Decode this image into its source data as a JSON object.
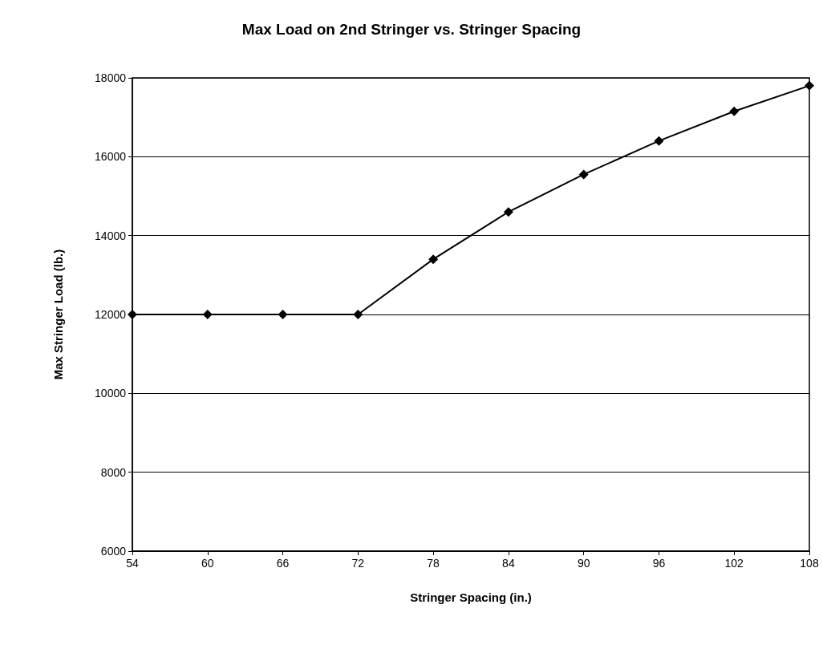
{
  "chart_data": {
    "type": "line",
    "title": "Max Load on 2nd Stringer vs. Stringer Spacing",
    "xlabel": "Stringer Spacing (in.)",
    "ylabel": "Max Stringer Load (lb.)",
    "x": [
      54,
      60,
      66,
      72,
      78,
      84,
      90,
      96,
      102,
      108
    ],
    "series": [
      {
        "color": "#000000",
        "values": [
          12000,
          12000,
          12000,
          12000,
          13400,
          14600,
          15550,
          16400,
          17150,
          17800
        ]
      }
    ],
    "xlim": [
      54,
      108
    ],
    "xticks": [
      54,
      60,
      66,
      72,
      78,
      84,
      90,
      96,
      102,
      108
    ],
    "ylim": [
      6000,
      18000
    ],
    "yticks": [
      6000,
      8000,
      10000,
      12000,
      14000,
      16000,
      18000
    ],
    "grid": "y",
    "marker": "diamond",
    "line_style": "solid"
  }
}
